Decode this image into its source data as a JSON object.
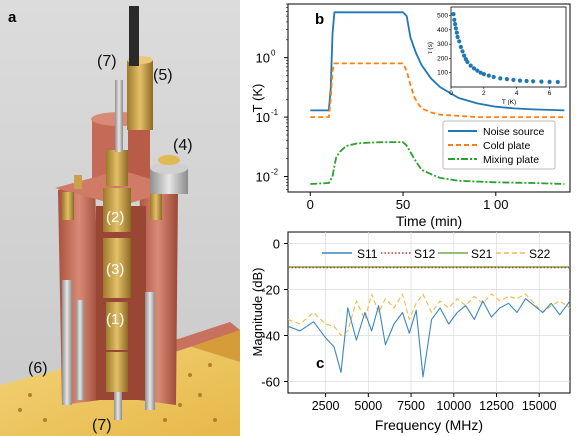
{
  "panel_labels": {
    "a": "a",
    "b": "b",
    "c": "c"
  },
  "callouts": [
    "(7)",
    "(5)",
    "(4)",
    "(2)",
    "(3)",
    "(1)",
    "(6)",
    "(7)"
  ],
  "colors": {
    "noise_source": "#1f77b4",
    "cold_plate": "#ff7f0e",
    "mixing_plate": "#2ca02c",
    "s11": "#3b86c0",
    "s12": "#c0392b",
    "s21": "#7aa84a",
    "s22": "#f5b942",
    "copper": "#c8715e",
    "brass": "#d4a94a"
  },
  "chart_data": [
    {
      "id": "b",
      "type": "line",
      "xlabel": "Time (min)",
      "ylabel": "T  (K)",
      "yscale": "log",
      "xlim": [
        -12,
        140
      ],
      "ylim": [
        0.0055,
        8
      ],
      "xticks": [
        0,
        50,
        100
      ],
      "xtick_labels": [
        "0",
        "50",
        "1 00"
      ],
      "yticks": [
        0.01,
        0.1,
        1
      ],
      "ytick_labels": [
        "10",
        "10",
        "10"
      ],
      "ytick_exponents": [
        "-2",
        "-1",
        "0"
      ],
      "legend_position": "lower-right",
      "series": [
        {
          "name": "Noise source",
          "style": "solid",
          "x": [
            0,
            10,
            11,
            12,
            13,
            20,
            30,
            40,
            50,
            52,
            54,
            57,
            60,
            65,
            70,
            80,
            90,
            100,
            110,
            120,
            137
          ],
          "y": [
            0.13,
            0.13,
            0.3,
            2.5,
            5.8,
            5.8,
            5.8,
            5.8,
            5.8,
            5.0,
            2.2,
            1.2,
            0.75,
            0.45,
            0.32,
            0.21,
            0.17,
            0.15,
            0.14,
            0.135,
            0.13
          ]
        },
        {
          "name": "Cold plate",
          "style": "dashed",
          "x": [
            0,
            10,
            11,
            12,
            13,
            20,
            30,
            40,
            50,
            52,
            54,
            56,
            58,
            60,
            65,
            70,
            80,
            90,
            100,
            120,
            137
          ],
          "y": [
            0.1,
            0.1,
            0.2,
            0.6,
            0.8,
            0.8,
            0.8,
            0.8,
            0.8,
            0.6,
            0.35,
            0.22,
            0.17,
            0.14,
            0.12,
            0.11,
            0.105,
            0.1,
            0.1,
            0.1,
            0.1
          ]
        },
        {
          "name": "Mixing plate",
          "style": "dashdot",
          "x": [
            0,
            10,
            12,
            13,
            14,
            16,
            18,
            20,
            25,
            30,
            40,
            50,
            52,
            54,
            56,
            58,
            60,
            65,
            70,
            80,
            100,
            120,
            137
          ],
          "y": [
            0.0075,
            0.0078,
            0.01,
            0.015,
            0.021,
            0.026,
            0.03,
            0.033,
            0.036,
            0.037,
            0.038,
            0.038,
            0.033,
            0.026,
            0.02,
            0.016,
            0.013,
            0.011,
            0.0095,
            0.0085,
            0.008,
            0.0078,
            0.0075
          ]
        }
      ],
      "inset": {
        "type": "scatter",
        "xlabel": "T (K)",
        "ylabel": "τ (s)",
        "xlim": [
          0,
          7
        ],
        "ylim": [
          0,
          560
        ],
        "xticks": [
          0,
          2,
          4,
          6
        ],
        "yticks": [
          100,
          200,
          300,
          400,
          500
        ],
        "x": [
          0.15,
          0.2,
          0.25,
          0.3,
          0.35,
          0.4,
          0.5,
          0.6,
          0.7,
          0.8,
          0.9,
          1.0,
          1.2,
          1.4,
          1.6,
          1.8,
          2.0,
          2.3,
          2.6,
          3.0,
          3.4,
          3.8,
          4.2,
          4.6,
          5.0,
          5.5,
          6.0,
          6.5
        ],
        "y": [
          510,
          470,
          440,
          410,
          380,
          350,
          320,
          280,
          250,
          220,
          195,
          175,
          150,
          130,
          115,
          100,
          90,
          80,
          70,
          60,
          55,
          50,
          45,
          42,
          40,
          38,
          36,
          35
        ]
      }
    },
    {
      "id": "c",
      "type": "line",
      "xlabel": "Frequency (MHz)",
      "ylabel": "Magnitude (dB)",
      "xlim": [
        300,
        16800
      ],
      "ylim": [
        -65,
        5
      ],
      "xticks": [
        2500,
        5000,
        7500,
        10000,
        12500,
        15000
      ],
      "yticks": [
        0,
        -20,
        -40,
        -60
      ],
      "grid": true,
      "legend_position": "top",
      "series": [
        {
          "name": "S11",
          "style": "solid",
          "x": [
            300,
            1000,
            1800,
            2500,
            3000,
            3400,
            3800,
            4300,
            4800,
            5200,
            5600,
            6000,
            6500,
            7000,
            7400,
            7800,
            8200,
            8700,
            9200,
            9700,
            10200,
            10700,
            11200,
            11700,
            12200,
            12700,
            13200,
            13700,
            14200,
            14700,
            15200,
            15700,
            16200,
            16800
          ],
          "y": [
            -36,
            -38,
            -34,
            -41,
            -45,
            -56,
            -28,
            -42,
            -30,
            -38,
            -27,
            -44,
            -35,
            -30,
            -39,
            -29,
            -58,
            -33,
            -28,
            -35,
            -30,
            -27,
            -33,
            -25,
            -32,
            -28,
            -26,
            -30,
            -24,
            -27,
            -30,
            -26,
            -31,
            -25
          ]
        },
        {
          "name": "S12",
          "style": "dotted",
          "x": [
            300,
            16800
          ],
          "y": [
            -10.5,
            -10.5
          ]
        },
        {
          "name": "S21",
          "style": "solid",
          "x": [
            300,
            16800
          ],
          "y": [
            -10.2,
            -10.2
          ]
        },
        {
          "name": "S22",
          "style": "dashed",
          "x": [
            300,
            1000,
            1800,
            2500,
            3000,
            3400,
            3800,
            4300,
            4800,
            5200,
            5600,
            6000,
            6500,
            7000,
            7400,
            7800,
            8200,
            8700,
            9200,
            9700,
            10200,
            10700,
            11200,
            11700,
            12200,
            12700,
            13200,
            13700,
            14200,
            14700,
            15200,
            15700,
            16200,
            16800
          ],
          "y": [
            -33,
            -35,
            -30,
            -35,
            -36,
            -40,
            -38,
            -25,
            -33,
            -22,
            -30,
            -24,
            -28,
            -22,
            -33,
            -26,
            -22,
            -30,
            -25,
            -28,
            -24,
            -27,
            -23,
            -26,
            -22,
            -25,
            -23,
            -24,
            -22,
            -26,
            -30,
            -27,
            -25,
            -28
          ]
        }
      ]
    }
  ]
}
